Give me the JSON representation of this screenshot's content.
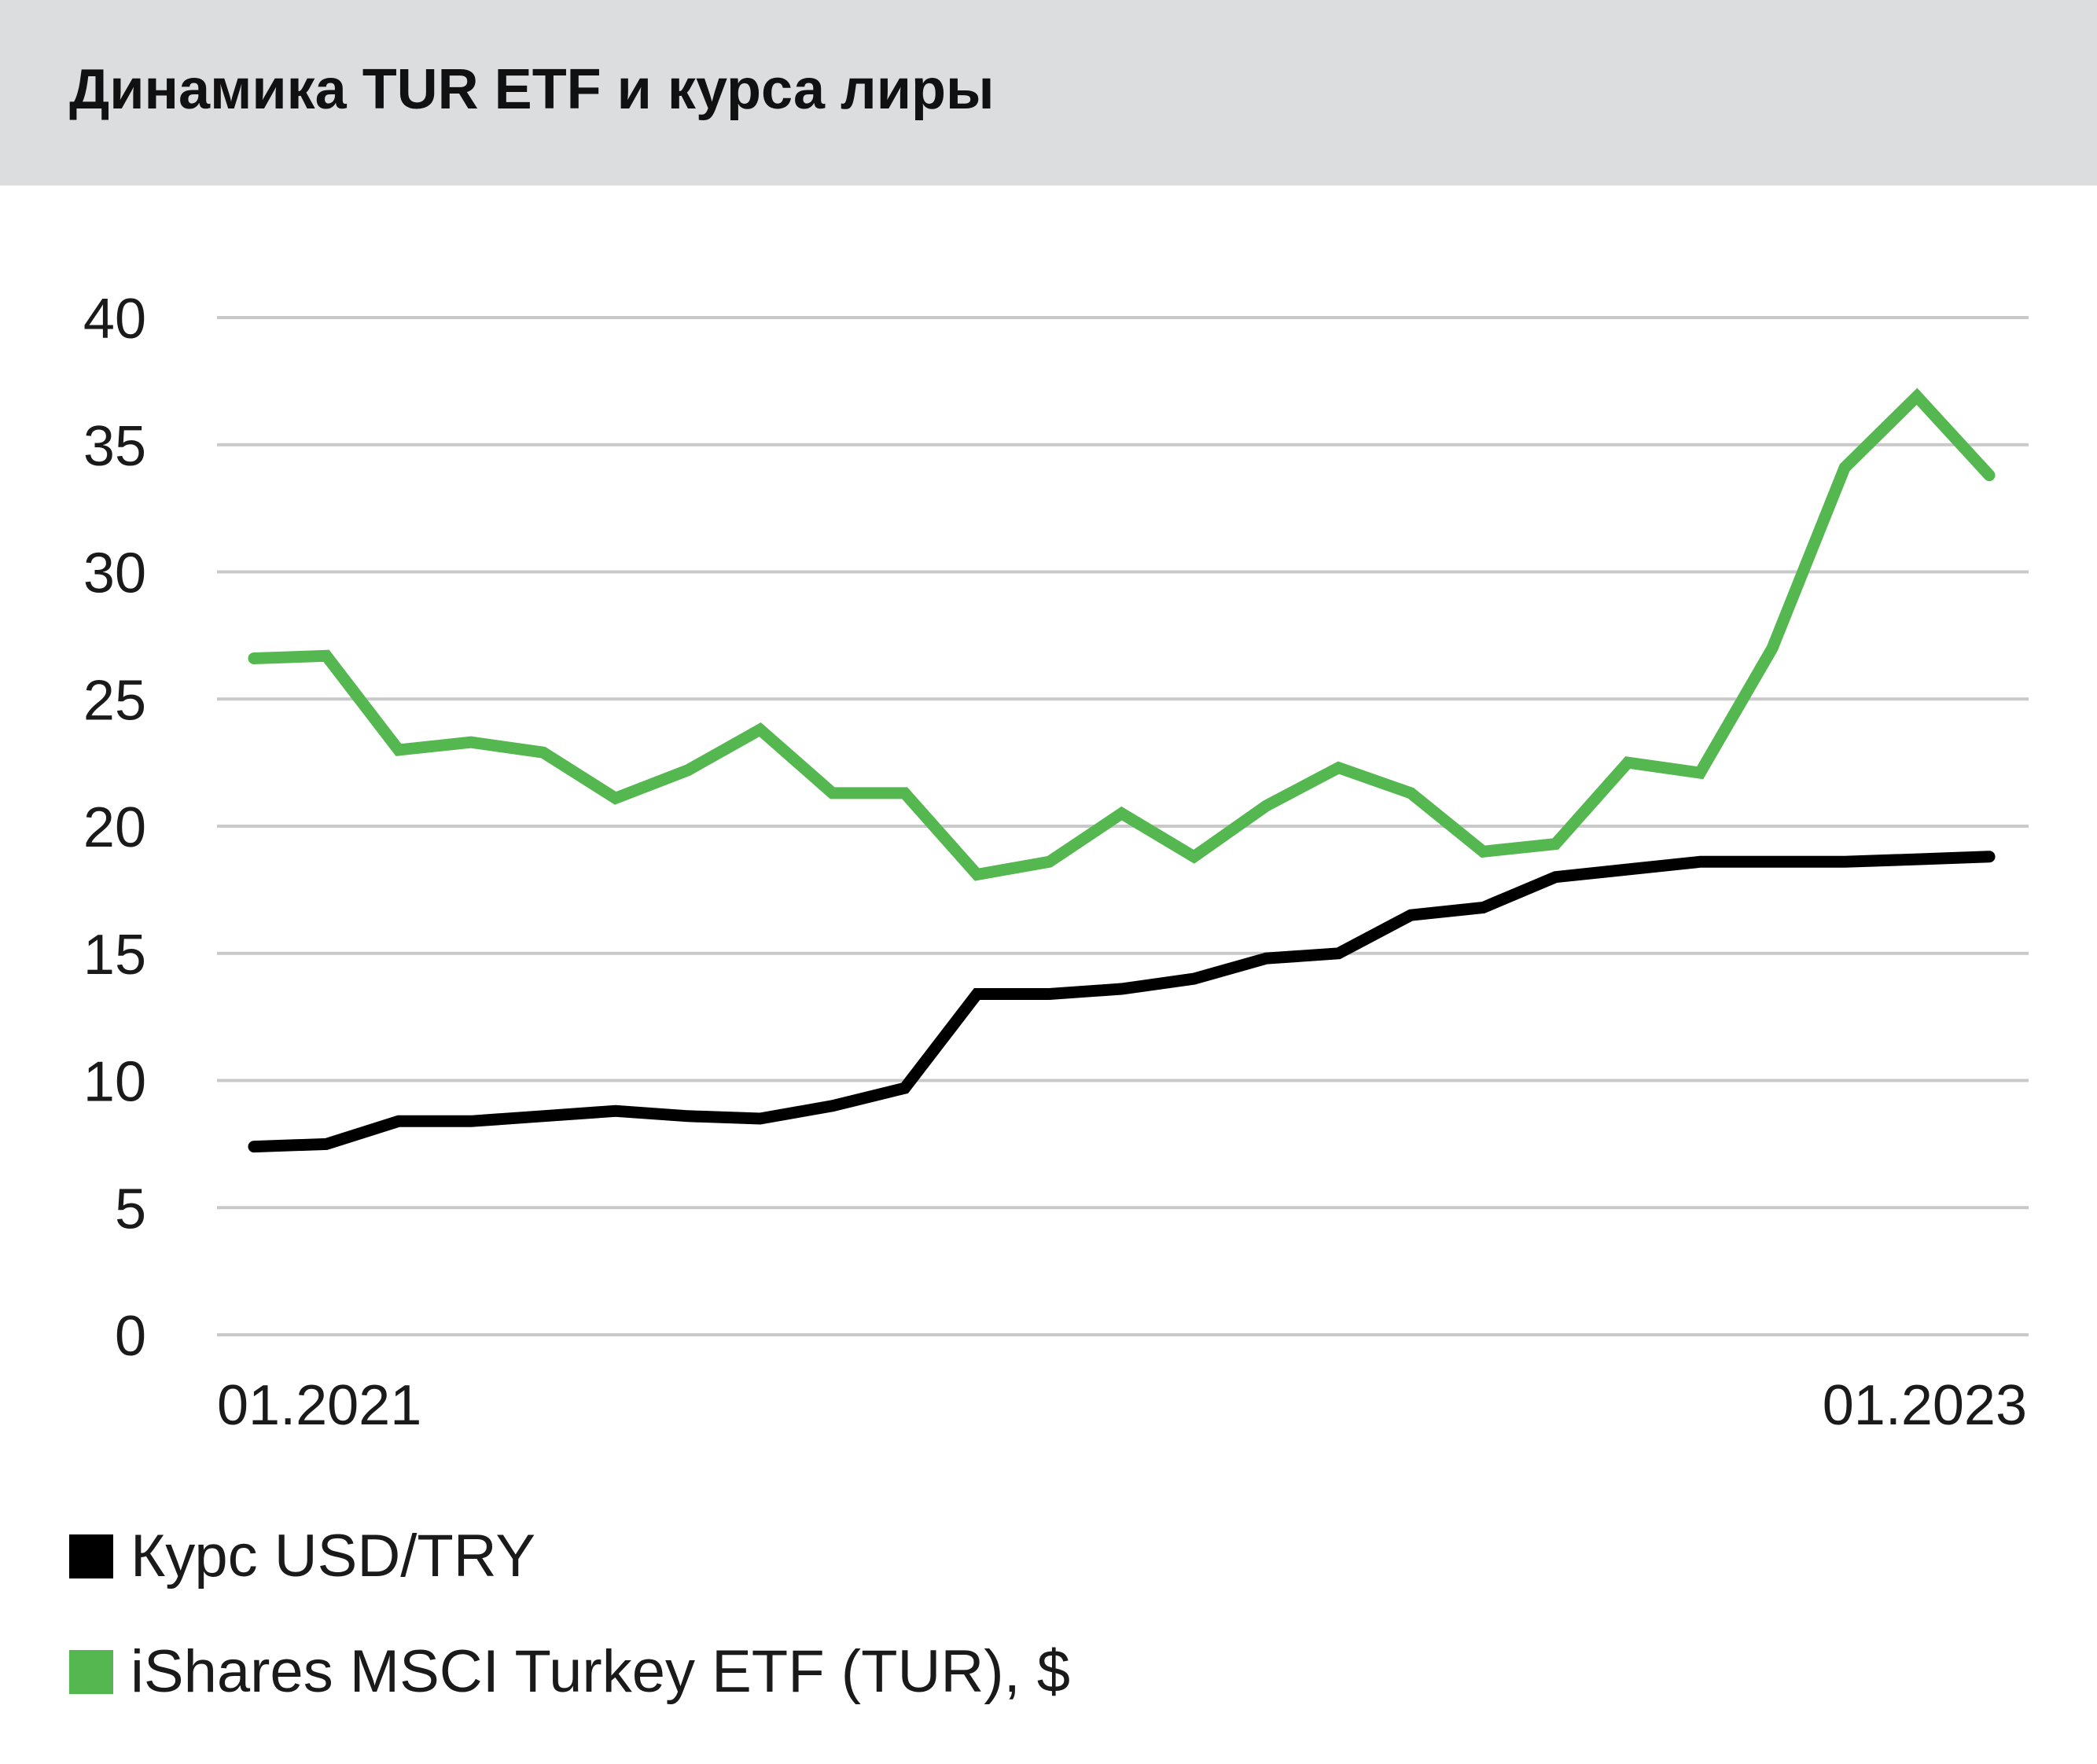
{
  "title": "Динамика TUR ETF и курса лиры",
  "chart_data": {
    "type": "line",
    "title": "Динамика TUR ETF и курса лиры",
    "xlabel": "",
    "ylabel": "",
    "ylim": [
      0,
      40
    ],
    "yticks": [
      0,
      5,
      10,
      15,
      20,
      25,
      30,
      35,
      40
    ],
    "x_tick_labels": [
      "01.2021",
      "01.2023"
    ],
    "grid": "horizontal",
    "legend_position": "bottom-left",
    "x": [
      "01.2021",
      "02.2021",
      "03.2021",
      "04.2021",
      "05.2021",
      "06.2021",
      "07.2021",
      "08.2021",
      "09.2021",
      "10.2021",
      "11.2021",
      "12.2021",
      "01.2022",
      "02.2022",
      "03.2022",
      "04.2022",
      "05.2022",
      "06.2022",
      "07.2022",
      "08.2022",
      "09.2022",
      "10.2022",
      "11.2022",
      "12.2022",
      "01.2023"
    ],
    "series": [
      {
        "name": "Курс USD/TRY",
        "color": "#000000",
        "values": [
          7.4,
          7.5,
          8.4,
          8.4,
          8.6,
          8.8,
          8.6,
          8.5,
          9.0,
          9.7,
          13.4,
          13.4,
          13.6,
          14.0,
          14.8,
          15.0,
          16.5,
          16.8,
          18.0,
          18.3,
          18.6,
          18.6,
          18.6,
          18.7,
          18.8
        ]
      },
      {
        "name": "iShares MSCI Turkey ETF (TUR), $",
        "color": "#55b74f",
        "values": [
          26.6,
          26.7,
          23.0,
          23.3,
          22.9,
          21.1,
          22.2,
          23.8,
          21.3,
          21.3,
          18.1,
          18.6,
          20.5,
          18.8,
          20.8,
          22.3,
          21.3,
          19.0,
          19.3,
          22.5,
          22.1,
          27.0,
          34.1,
          36.9,
          33.8
        ]
      }
    ]
  }
}
